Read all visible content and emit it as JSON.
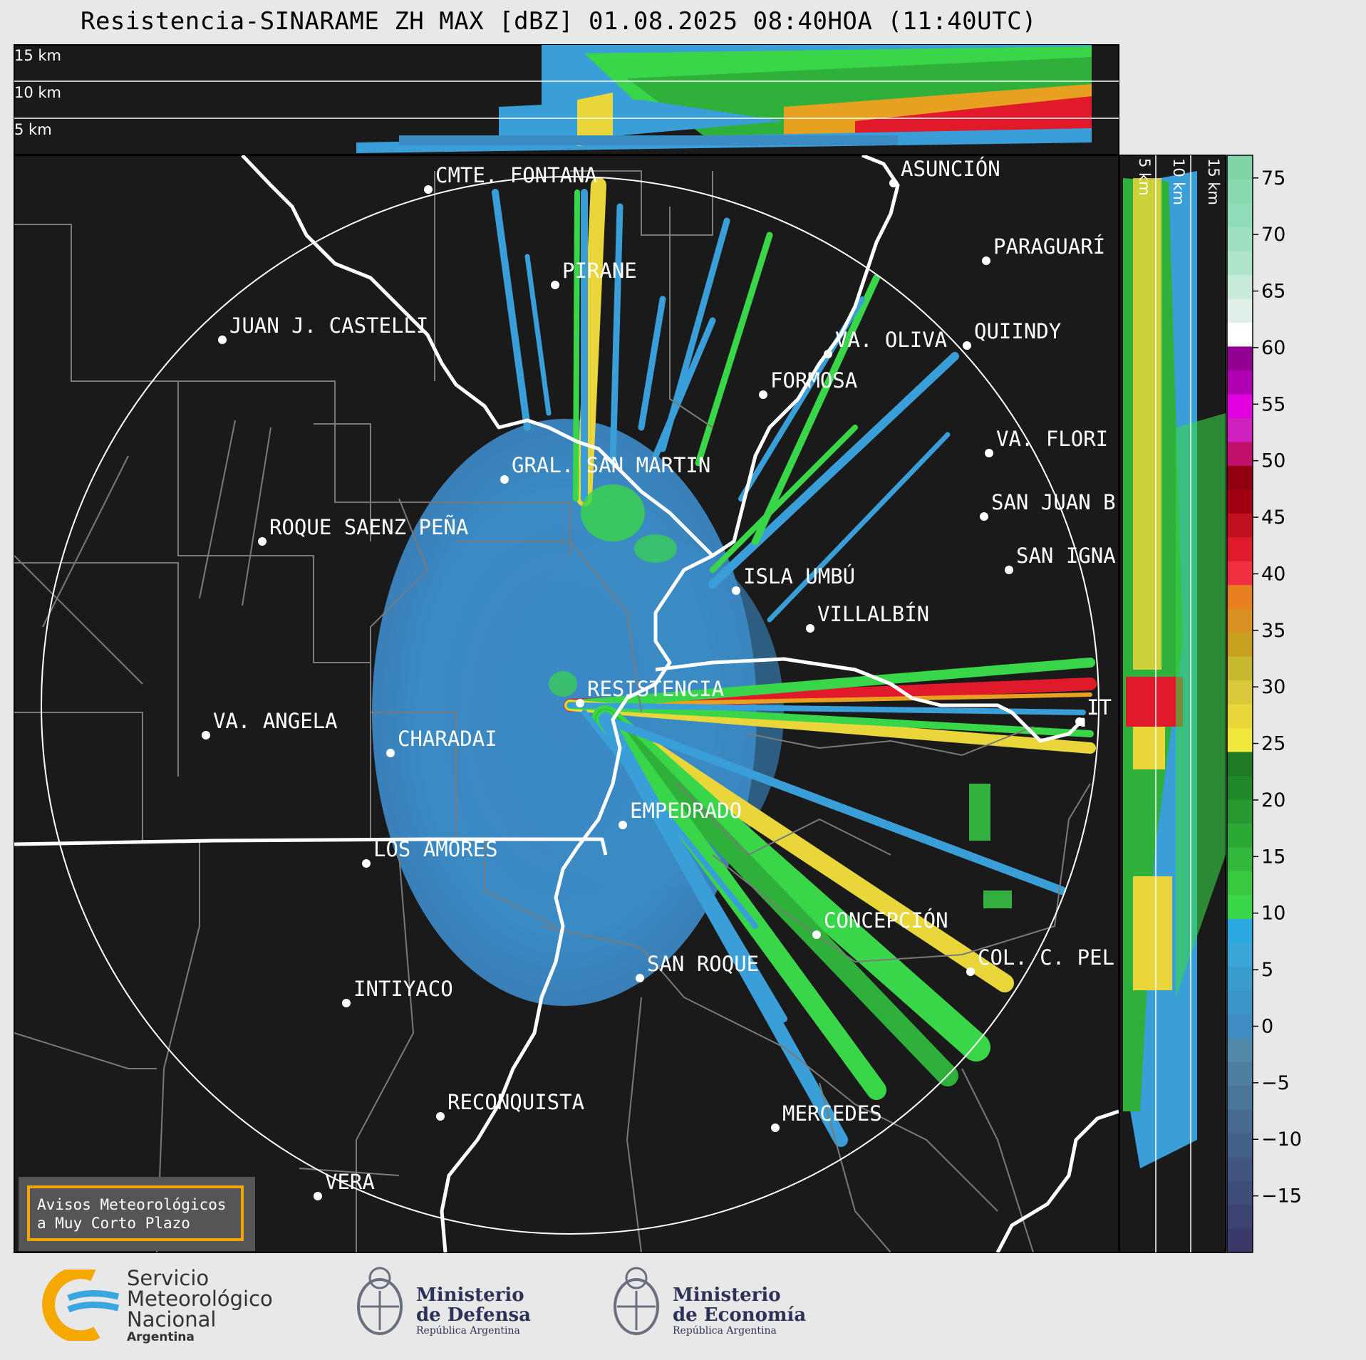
{
  "title": "Resistencia-SINARAME ZH MAX [dBZ] 01.08.2025 08:40HOA (11:40UTC)",
  "height_labels_top": [
    "15 km",
    "10 km",
    "5 km"
  ],
  "height_labels_side": [
    "5 km",
    "10 km",
    "15 km"
  ],
  "cities": [
    {
      "name": "CMTE. FONTANA"
    },
    {
      "name": "ASUNCIÓN"
    },
    {
      "name": "PARAGUARÍ"
    },
    {
      "name": "PIRANE"
    },
    {
      "name": "JUAN J. CASTELLI"
    },
    {
      "name": "VA. OLIVA"
    },
    {
      "name": "QUIINDY"
    },
    {
      "name": "FORMOSA"
    },
    {
      "name": "VA. FLORI"
    },
    {
      "name": "GRAL. SAN MARTIN"
    },
    {
      "name": "SAN JUAN B"
    },
    {
      "name": "ROQUE SAENZ PEÑA"
    },
    {
      "name": "SAN IGNA"
    },
    {
      "name": "ISLA UMBÚ"
    },
    {
      "name": "VILLALBÍN"
    },
    {
      "name": "RESISTENCIA"
    },
    {
      "name": "VA. ANGELA"
    },
    {
      "name": "CHARADAI"
    },
    {
      "name": "IT"
    },
    {
      "name": "EMPEDRADO"
    },
    {
      "name": "LOS AMORES"
    },
    {
      "name": "CONCEPCIÓN"
    },
    {
      "name": "SAN ROQUE"
    },
    {
      "name": "COL. C. PEL"
    },
    {
      "name": "INTIYACO"
    },
    {
      "name": "RECONQUISTA"
    },
    {
      "name": "MERCEDES"
    },
    {
      "name": "VERA"
    }
  ],
  "colorbar": {
    "ticks": [
      "75",
      "70",
      "65",
      "60",
      "55",
      "50",
      "45",
      "40",
      "35",
      "30",
      "25",
      "20",
      "15",
      "10",
      "5",
      "0",
      "−5",
      "−10",
      "−15"
    ],
    "range": [
      -20,
      77
    ]
  },
  "warning": {
    "line1": "Avisos Meteorológicos",
    "line2": "a Muy Corto Plazo"
  },
  "logos": {
    "smn": {
      "line1": "Servicio",
      "line2": "Meteorológico",
      "line3": "Nacional",
      "line4": "Argentina"
    },
    "defensa": {
      "line1": "Ministerio",
      "line2": "de Defensa",
      "line3": "República Argentina"
    },
    "economia": {
      "line1": "Ministerio",
      "line2": "de Economía",
      "line3": "República Argentina"
    }
  }
}
